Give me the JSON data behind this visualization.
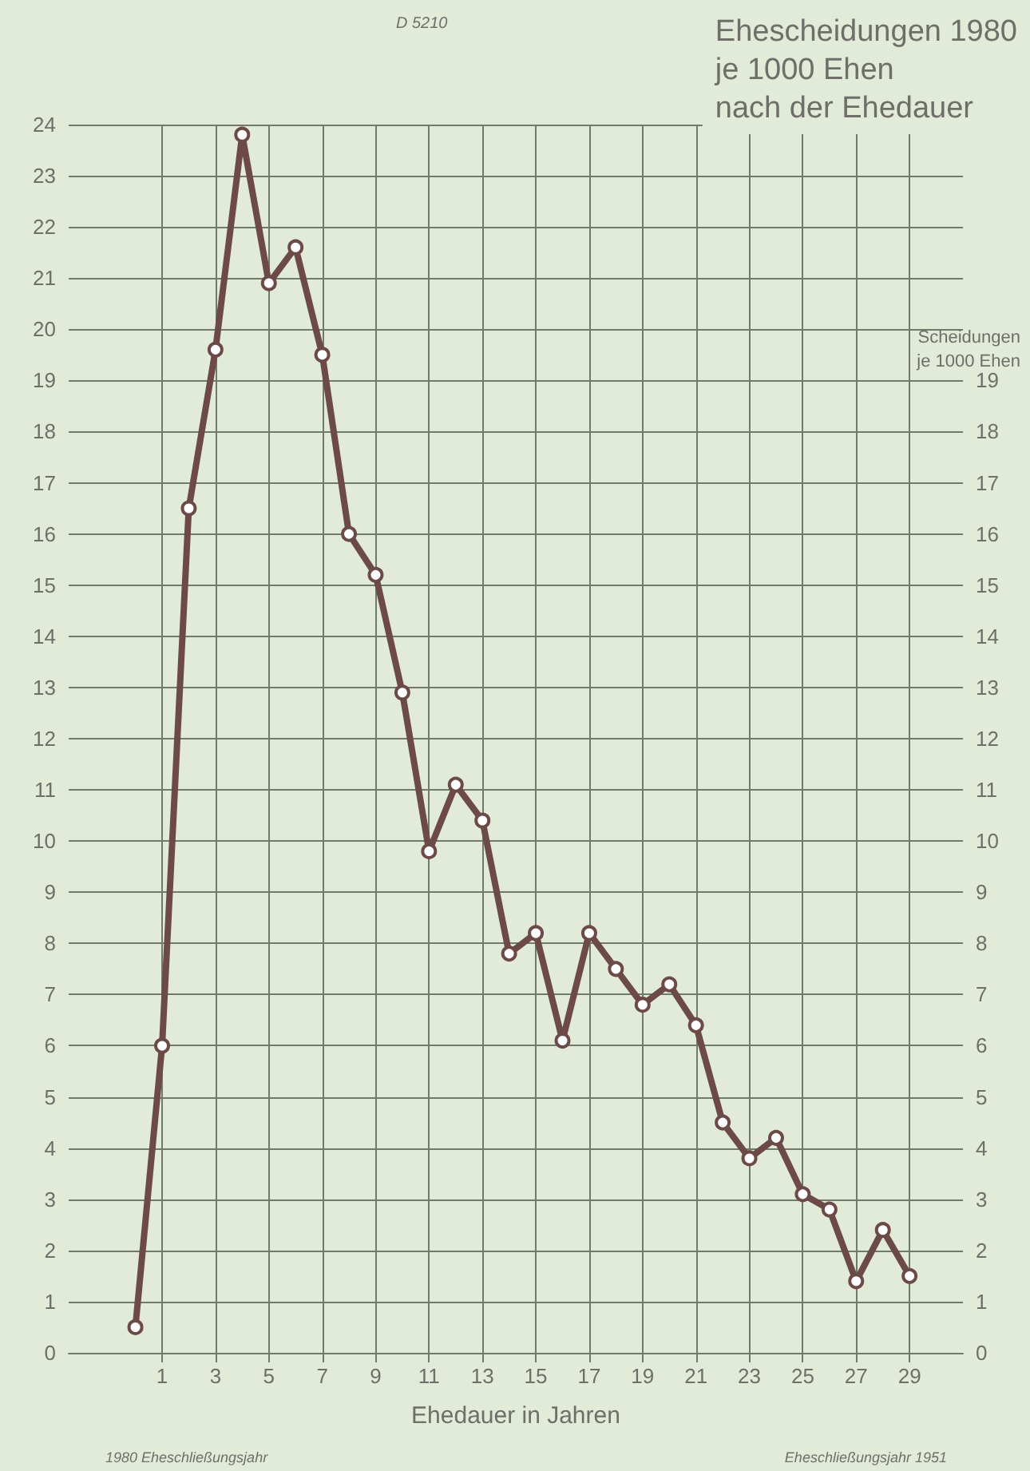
{
  "chart_data": {
    "type": "line",
    "title": "Ehescheidungen 1980\nje 1000 Ehen\nnach der Ehedauer",
    "xlabel": "Ehedauer in Jahren",
    "y2label": "Scheidungen\nje 1000 Ehen",
    "annotations": [
      "D 5210",
      "1980 Eheschließungsjahr",
      "Eheschließungsjahr 1951"
    ],
    "x": [
      0,
      1,
      2,
      3,
      4,
      5,
      6,
      7,
      8,
      9,
      10,
      11,
      12,
      13,
      14,
      15,
      16,
      17,
      18,
      19,
      20,
      21,
      22,
      23,
      24,
      25,
      26,
      27,
      28,
      29
    ],
    "series": [
      {
        "color": "#6b4a48",
        "values": [
          0.5,
          6.0,
          16.5,
          19.6,
          23.8,
          20.9,
          21.6,
          19.5,
          16.0,
          15.2,
          12.9,
          9.8,
          11.1,
          10.4,
          7.8,
          8.2,
          6.1,
          8.2,
          7.5,
          6.8,
          7.2,
          6.4,
          4.5,
          3.8,
          4.2,
          3.1,
          2.8,
          1.4,
          2.4,
          1.5
        ]
      }
    ],
    "xlim": [
      -2.5,
      31
    ],
    "xticks": [
      1,
      3,
      5,
      7,
      9,
      11,
      13,
      15,
      17,
      19,
      21,
      23,
      25,
      27,
      29
    ],
    "ylim": [
      0,
      24
    ],
    "yticks": [
      0,
      1,
      2,
      3,
      4,
      5,
      6,
      7,
      8,
      9,
      10,
      11,
      12,
      13,
      14,
      15,
      16,
      17,
      18,
      19,
      20,
      21,
      22,
      23,
      24
    ],
    "y2lim": [
      0,
      24
    ],
    "y2ticks": [
      0,
      1,
      2,
      3,
      4,
      5,
      6,
      7,
      8,
      9,
      10,
      11,
      12,
      13,
      14,
      15,
      16,
      17,
      18,
      19
    ],
    "grid": true,
    "marker": "circle",
    "line_style": "solid"
  }
}
